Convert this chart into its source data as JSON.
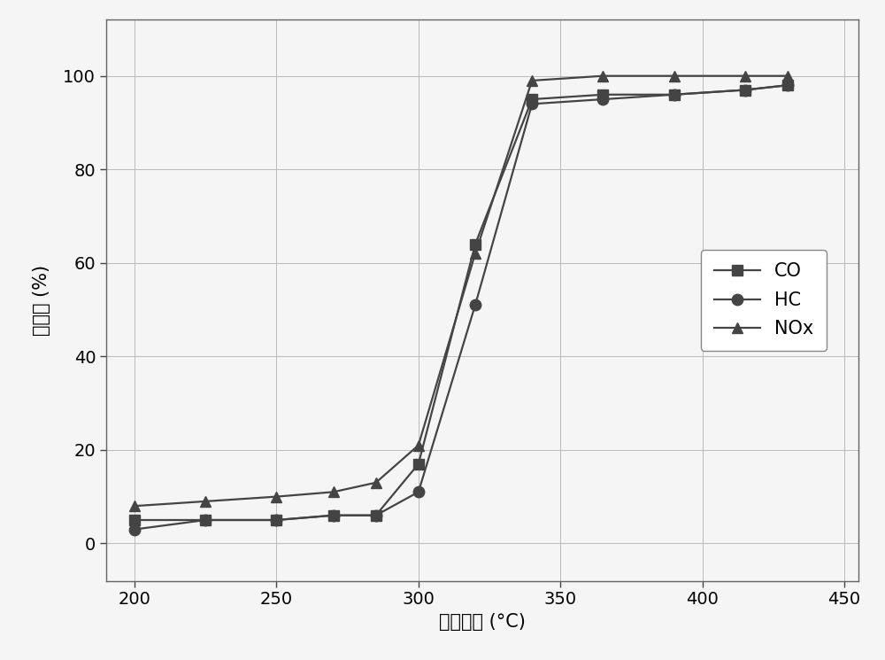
{
  "CO_x": [
    200,
    225,
    250,
    270,
    285,
    300,
    320,
    340,
    365,
    390,
    415,
    430
  ],
  "CO_y": [
    5,
    5,
    5,
    6,
    6,
    17,
    64,
    95,
    96,
    96,
    97,
    98
  ],
  "HC_x": [
    200,
    225,
    250,
    270,
    285,
    300,
    320,
    340,
    365,
    390,
    415,
    430
  ],
  "HC_y": [
    3,
    5,
    5,
    6,
    6,
    11,
    51,
    94,
    95,
    96,
    97,
    98
  ],
  "NOx_x": [
    200,
    225,
    250,
    270,
    285,
    300,
    320,
    340,
    365,
    390,
    415,
    430
  ],
  "NOx_y": [
    8,
    9,
    10,
    11,
    13,
    21,
    62,
    99,
    100,
    100,
    100,
    100
  ],
  "xlabel": "入口温度 (°C)",
  "ylabel": "转化率 (%)",
  "xlim": [
    190,
    455
  ],
  "ylim": [
    -8,
    112
  ],
  "xticks": [
    200,
    250,
    300,
    350,
    400,
    450
  ],
  "yticks": [
    0,
    20,
    40,
    60,
    80,
    100
  ],
  "line_color": "#444444",
  "marker_CO": "s",
  "marker_HC": "o",
  "marker_NOx": "^",
  "legend_labels": [
    "CO",
    "HC",
    "NOx"
  ],
  "grid_color": "#bbbbbb",
  "background_color": "#f5f5f5",
  "label_fontsize": 15,
  "tick_fontsize": 14,
  "legend_fontsize": 15,
  "linewidth": 1.6,
  "markersize": 9
}
